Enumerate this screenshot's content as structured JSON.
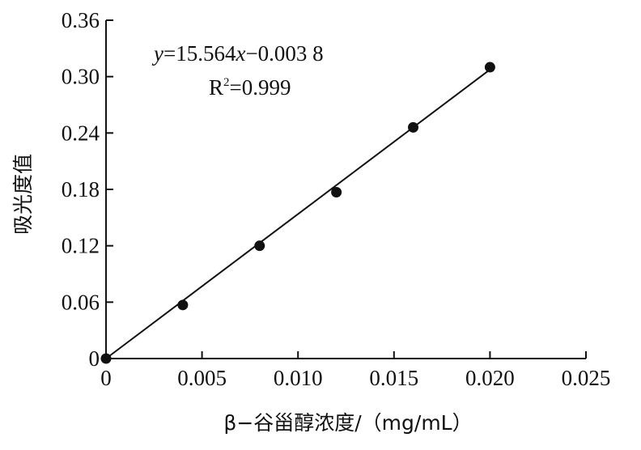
{
  "chart_data": {
    "type": "scatter",
    "xlabel": "β−谷甾醇浓度/（mg/mL）",
    "ylabel": "吸光度值",
    "xlim": [
      0,
      0.025
    ],
    "ylim": [
      0,
      0.36
    ],
    "x_ticks": [
      "0",
      "0.005",
      "0.010",
      "0.015",
      "0.020",
      "0.025"
    ],
    "y_ticks": [
      "0",
      "0.06",
      "0.12",
      "0.18",
      "0.24",
      "0.30",
      "0.36"
    ],
    "x": [
      0,
      0.004,
      0.008,
      0.012,
      0.016,
      0.02
    ],
    "y": [
      0,
      0.057,
      0.12,
      0.177,
      0.246,
      0.31
    ],
    "fit": {
      "slope": 15.564,
      "intercept": -0.0038
    },
    "annotations": {
      "equation_y": "y",
      "equation_mid": "=15.564",
      "equation_x": "x",
      "equation_tail": "−0.003 8",
      "r2_label": "R",
      "r2_sup": "2",
      "r2_value": "=0.999"
    },
    "grid": false,
    "colors": {
      "ink": "#111111"
    }
  }
}
